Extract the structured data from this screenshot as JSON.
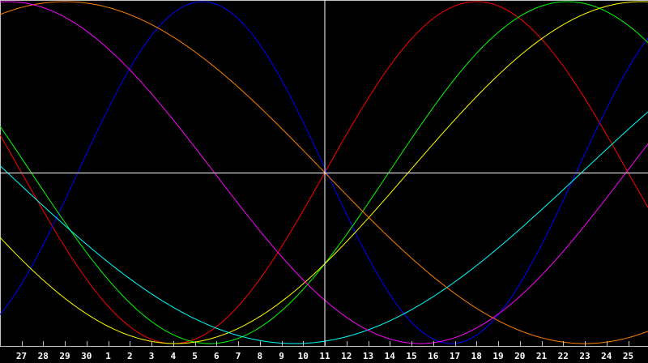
{
  "chart_data": {
    "type": "line",
    "title": "",
    "xlabel": "",
    "ylabel": "",
    "ylim": [
      -1,
      1
    ],
    "grid": false,
    "legend": "none",
    "categories": [
      "27",
      "28",
      "29",
      "30",
      "1",
      "2",
      "3",
      "4",
      "5",
      "6",
      "7",
      "8",
      "9",
      "10",
      "11",
      "12",
      "13",
      "14",
      "15",
      "16",
      "17",
      "18",
      "19",
      "20",
      "21",
      "22",
      "23",
      "24",
      "25"
    ],
    "marker_day": "11",
    "series": [
      {
        "color": "#ff0000",
        "period_days": 28,
        "zero_crossing_up_index": 14.0
      },
      {
        "color": "#0000ff",
        "period_days": 23,
        "zero_crossing_up_index": 2.6
      },
      {
        "color": "#00ff00",
        "period_days": 33,
        "zero_crossing_up_index": 16.95
      },
      {
        "color": "#ffff00",
        "period_days": 43,
        "zero_crossing_up_index": 17.85
      },
      {
        "color": "#00ffff",
        "period_days": 53,
        "zero_crossing_up_index": 25.85
      },
      {
        "color": "#ff8000",
        "period_days": 48,
        "zero_crossing_up_index": -10.0
      },
      {
        "color": "#ff00ff",
        "period_days": 38,
        "zero_crossing_up_index": -10.1
      }
    ],
    "colors": {
      "background": "#000000",
      "axis": "#c0c0c0",
      "crosshair": "#ffffff",
      "labels": "#ffffff"
    }
  }
}
